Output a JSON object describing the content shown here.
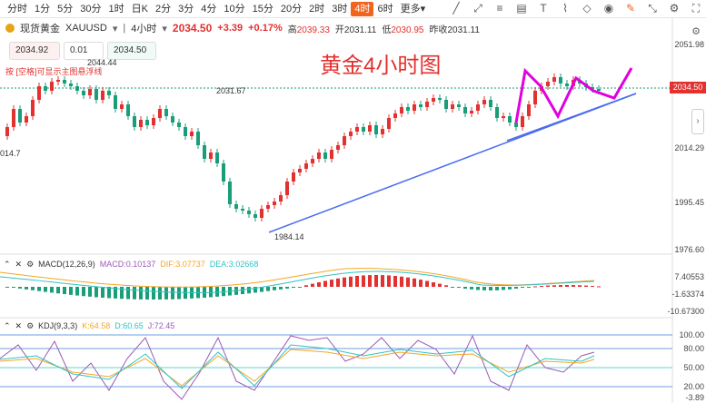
{
  "toolbar": {
    "timeframes": [
      "分时",
      "1分",
      "5分",
      "30分",
      "1时",
      "日K",
      "2分",
      "3分",
      "4分",
      "10分",
      "15分",
      "20分",
      "2时",
      "3时",
      "4时",
      "6时",
      "更多"
    ],
    "active_index": 14,
    "more_suffix": "▾"
  },
  "info": {
    "symbol_name": "现货黄金",
    "symbol_code": "XAUUSD",
    "period": "4小时",
    "price": "2034.50",
    "change": "+3.39",
    "change_pct": "+0.17%",
    "high_label": "高",
    "high": "2039.33",
    "open_label": "开",
    "open": "2031.11",
    "low_label": "低",
    "low": "2030.95",
    "prev_label": "昨收",
    "prev": "2031.11"
  },
  "order": {
    "sell_price": "2034.92",
    "qty": "0.01",
    "buy_price": "2034.50",
    "hint": "按 [空格]可显示主图悬浮线"
  },
  "chart": {
    "title": "黄金4小时图",
    "y_labels": [
      "2051.98",
      "2034.50",
      "2014.29",
      "1995.45",
      "1976.60"
    ],
    "current_price_tag": "2034.50",
    "annotations": {
      "high_left": "2044.44",
      "mid_high": "2031.67",
      "low": "1984.14",
      "left_edge": "014.7"
    }
  },
  "macd": {
    "label": "MACD(12,26,9)",
    "macd": "MACD:0.10137",
    "dif": "DIF:3.07737",
    "dea": "DEA:3.02668",
    "y_labels": [
      "7.40553",
      "-1.63374",
      "-10.67300"
    ]
  },
  "kdj": {
    "label": "KDJ(9,3,3)",
    "k": "K:64.58",
    "d": "D:60.65",
    "j": "J:72.45",
    "y_labels": [
      "100.00",
      "80.00",
      "50.00",
      "20.00",
      "-3.89"
    ]
  },
  "colors": {
    "up": "#e2312f",
    "down": "#1a9e7a",
    "accent": "#f0641e",
    "trend": "#4a6cf0",
    "arrow": "#e000e0"
  }
}
